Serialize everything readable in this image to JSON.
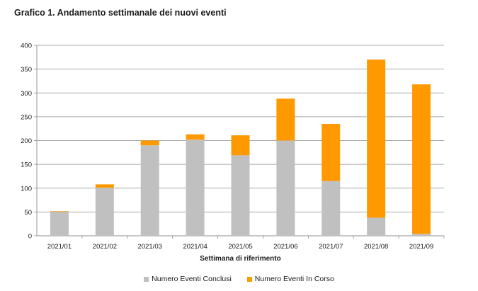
{
  "title": "Grafico 1. Andamento settimanale dei nuovi eventi",
  "chart_data": {
    "type": "bar",
    "stacked": true,
    "title": "Grafico 1. Andamento settimanale dei nuovi eventi",
    "xlabel": "Settimana di riferimento",
    "ylabel": "",
    "ylim": [
      0,
      400
    ],
    "yticks": [
      0,
      50,
      100,
      150,
      200,
      250,
      300,
      350,
      400
    ],
    "grid": true,
    "legend_position": "bottom",
    "categories": [
      "2021/01",
      "2021/02",
      "2021/03",
      "2021/04",
      "2021/05",
      "2021/06",
      "2021/07",
      "2021/08",
      "2021/09"
    ],
    "series": [
      {
        "name": "Numero Eventi Conclusi",
        "color": "#c0c0c0",
        "values": [
          51,
          101,
          190,
          202,
          169,
          200,
          115,
          38,
          4
        ]
      },
      {
        "name": "Numero Eventi In Corso",
        "color": "#ff9900",
        "values": [
          1,
          7,
          10,
          11,
          42,
          88,
          120,
          332,
          314
        ]
      }
    ]
  }
}
